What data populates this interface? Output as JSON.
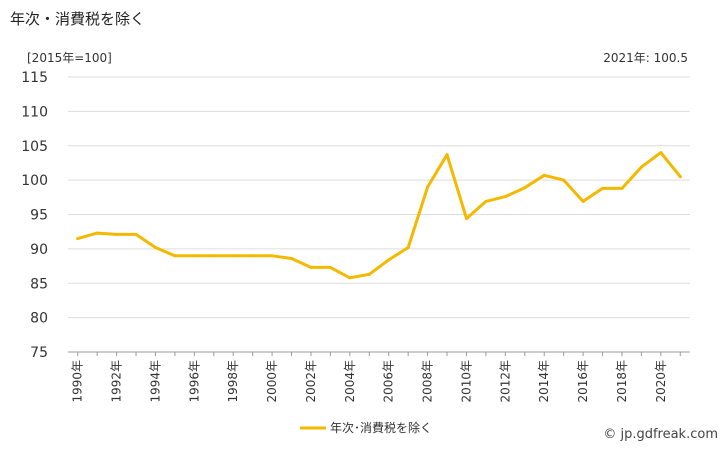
{
  "header": {
    "title": "年次・消費税を除く",
    "unit": "[2015年=100]",
    "latest": "2021年: 100.5"
  },
  "footer": {
    "credit": "© jp.gdfreak.com"
  },
  "chart_data": {
    "type": "line",
    "title": "年次・消費税を除く",
    "ylabel": "[2015年=100]",
    "xlabel": "",
    "ylim": [
      75,
      115
    ],
    "yticks": [
      75,
      80,
      85,
      90,
      95,
      100,
      105,
      110,
      115
    ],
    "grid": true,
    "legend_position": "bottom-center",
    "x": [
      1990,
      1991,
      1992,
      1993,
      1994,
      1995,
      1996,
      1997,
      1998,
      1999,
      2000,
      2001,
      2002,
      2003,
      2004,
      2005,
      2006,
      2007,
      2008,
      2009,
      2010,
      2011,
      2012,
      2013,
      2014,
      2015,
      2016,
      2017,
      2018,
      2019,
      2020,
      2021
    ],
    "xtick_labels": [
      "1990年",
      "1992年",
      "1994年",
      "1996年",
      "1998年",
      "2000年",
      "2002年",
      "2004年",
      "2006年",
      "2008年",
      "2010年",
      "2012年",
      "2014年",
      "2016年",
      "2018年",
      "2020年"
    ],
    "series": [
      {
        "name": "年次･消費税を除く",
        "color": "#f5b800",
        "values": [
          91.5,
          92.3,
          92.1,
          92.1,
          90.2,
          89.0,
          89.0,
          89.0,
          89.0,
          89.0,
          89.0,
          88.6,
          87.3,
          87.3,
          85.8,
          86.3,
          88.4,
          90.2,
          99.0,
          103.7,
          94.4,
          96.9,
          97.6,
          98.9,
          100.7,
          100.0,
          96.9,
          98.8,
          98.8,
          101.9,
          104.0,
          100.5
        ]
      }
    ]
  }
}
